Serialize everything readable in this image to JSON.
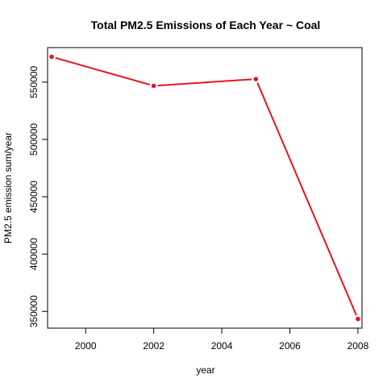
{
  "chart_data": {
    "type": "line",
    "title": "Total PM2.5 Emissions of Each Year ~ Coal",
    "xlabel": "year",
    "ylabel": "PM2.5 emission sum/year",
    "x": [
      1999,
      2002,
      2005,
      2008
    ],
    "series": [
      {
        "values": [
          572126,
          546789,
          552675,
          343432
        ],
        "color": "#e8141c"
      }
    ],
    "xticks": [
      2000,
      2002,
      2004,
      2006,
      2008
    ],
    "yticks": [
      350000,
      400000,
      450000,
      500000,
      550000
    ],
    "xlim": [
      1998.88,
      2008.12
    ],
    "ylim": [
      335404,
      580154
    ],
    "grid": false,
    "legend": "none"
  }
}
